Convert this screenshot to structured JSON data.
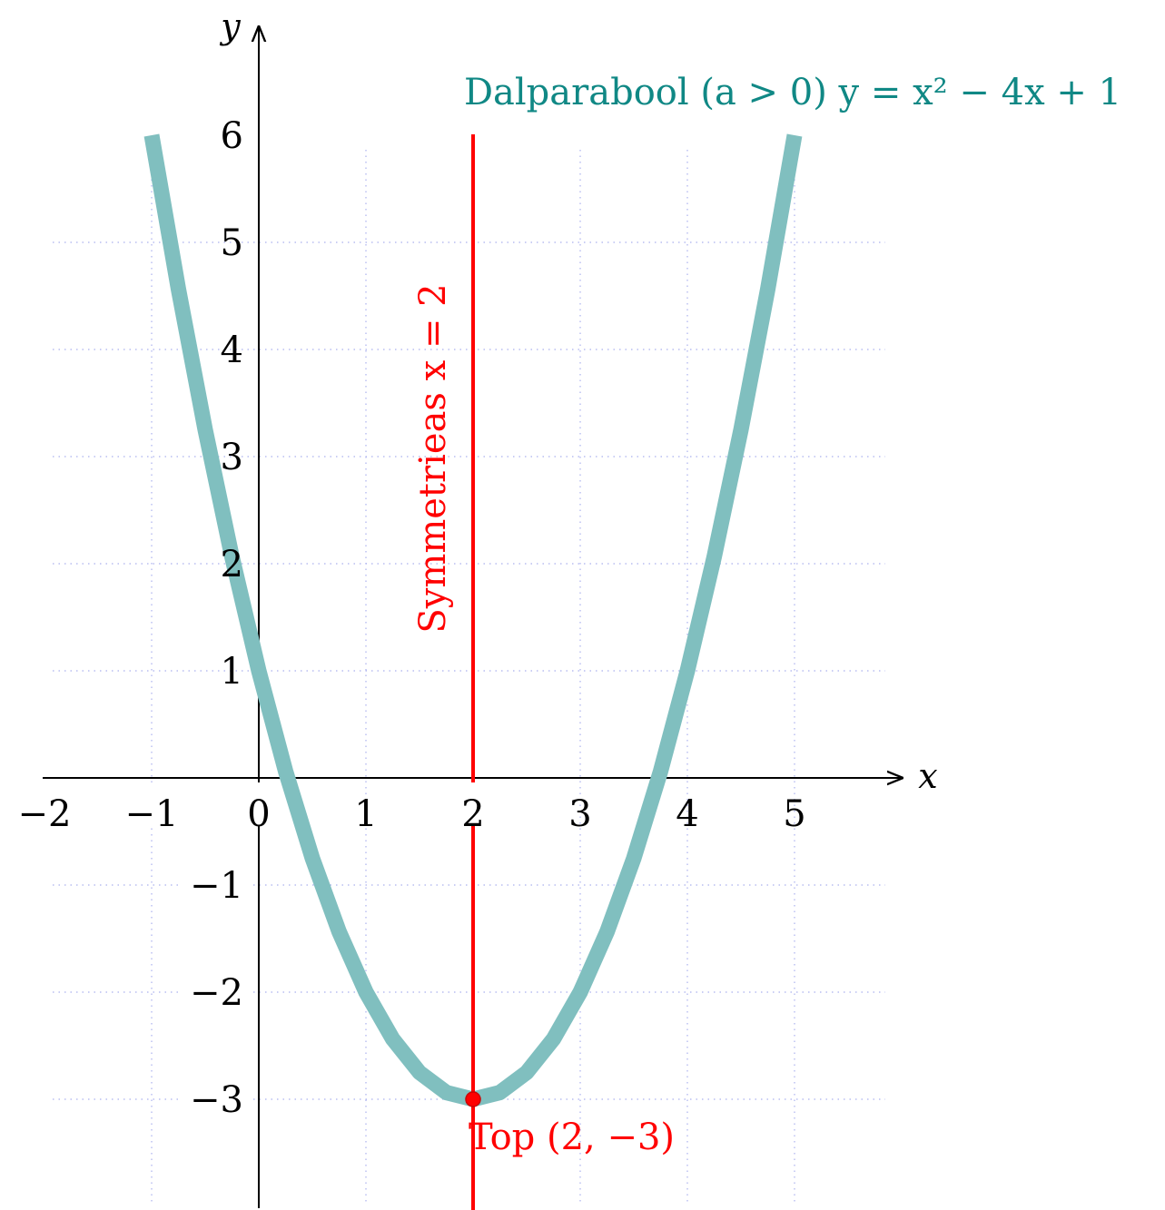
{
  "chart_data": {
    "type": "line",
    "title": "",
    "xlabel": "x",
    "ylabel": "y",
    "xlim": [
      -2,
      6
    ],
    "ylim": [
      -4,
      7
    ],
    "grid": true,
    "x_ticks": [
      -2,
      -1,
      0,
      1,
      2,
      3,
      4,
      5
    ],
    "x_tick_labels": [
      "−2",
      "−1",
      "0",
      "1",
      "2",
      "3",
      "4",
      "5"
    ],
    "y_ticks": [
      -3,
      -2,
      -1,
      1,
      2,
      3,
      4,
      5,
      6
    ],
    "y_tick_labels": [
      "−3",
      "−2",
      "−1",
      "1",
      "2",
      "3",
      "4",
      "5",
      "6"
    ],
    "series": [
      {
        "name": "Dalparabool (a > 0) y = x² − 4x + 1",
        "color": "#80bfbf",
        "x": [
          -1,
          -0.75,
          -0.5,
          -0.25,
          0,
          0.25,
          0.5,
          0.75,
          1,
          1.25,
          1.5,
          1.75,
          2,
          2.25,
          2.5,
          2.75,
          3,
          3.25,
          3.5,
          3.75,
          4,
          4.25,
          4.5,
          4.75,
          5
        ],
        "y": [
          6,
          4.5625,
          3.25,
          2.0625,
          1,
          0.0625,
          -0.75,
          -1.4375,
          -2,
          -2.4375,
          -2.75,
          -2.9375,
          -3,
          -2.9375,
          -2.75,
          -2.4375,
          -2,
          -1.4375,
          -0.75,
          0.0625,
          1,
          2.0625,
          3.25,
          4.5625,
          6
        ]
      }
    ],
    "symmetry_axis": {
      "x": 2,
      "label": "Symmetrieas x = 2",
      "color": "#ff0000"
    },
    "vertex": {
      "x": 2,
      "y": -3,
      "label": "Top (2, −3)",
      "color": "#ff0000"
    }
  }
}
